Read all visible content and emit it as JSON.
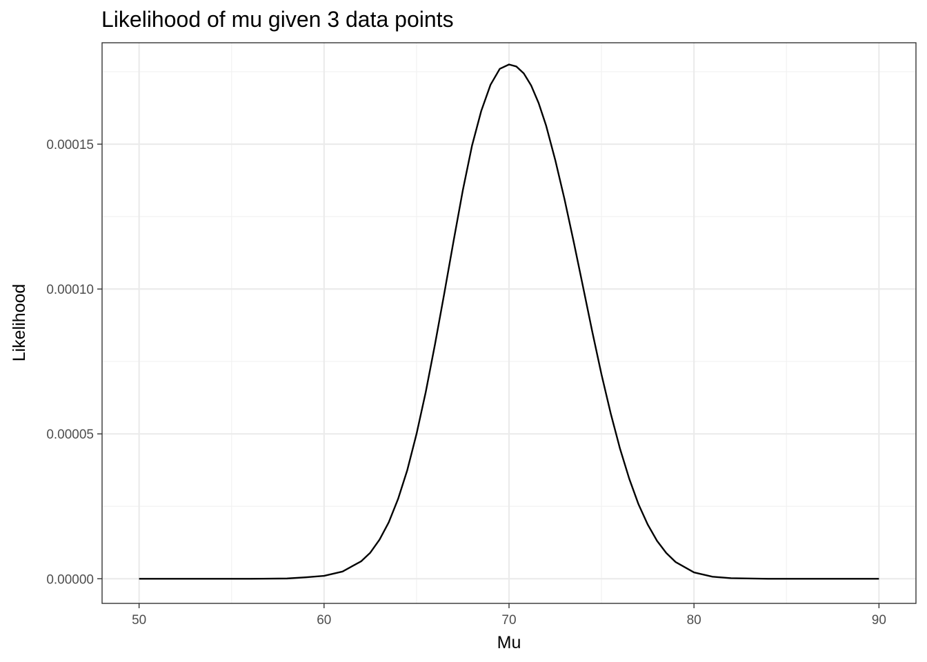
{
  "chart_data": {
    "type": "line",
    "title": "Likelihood of mu given 3 data points",
    "xlabel": "Mu",
    "ylabel": "Likelihood",
    "xlim": [
      48,
      92
    ],
    "ylim": [
      -8.5e-06,
      0.000185
    ],
    "x_ticks": [
      50,
      60,
      70,
      80,
      90
    ],
    "x_tick_labels": [
      "50",
      "60",
      "70",
      "80",
      "90"
    ],
    "y_ticks": [
      0,
      5e-05,
      0.0001,
      0.00015
    ],
    "y_tick_labels": [
      "0.00000",
      "0.00005",
      "0.00010",
      "0.00015"
    ],
    "grid": true,
    "legend": "none",
    "line_color": "#000000",
    "series": [
      {
        "x": [
          50,
          52,
          54,
          56,
          58,
          59,
          60,
          61,
          62,
          62.5,
          63,
          63.5,
          64,
          64.5,
          65,
          65.5,
          66,
          66.5,
          67,
          67.5,
          68,
          68.5,
          69,
          69.5,
          70,
          70.4,
          70.8,
          71.2,
          71.6,
          72,
          72.5,
          73,
          73.5,
          74,
          74.5,
          75,
          75.5,
          76,
          76.5,
          77,
          77.5,
          78,
          78.5,
          79,
          80,
          81,
          82,
          84,
          86,
          88,
          90
        ],
        "y": [
          0,
          0,
          0,
          0,
          1e-07,
          5e-07,
          1e-06,
          2.5e-06,
          6e-06,
          9e-06,
          1.35e-05,
          1.95e-05,
          2.75e-05,
          3.75e-05,
          5e-05,
          6.45e-05,
          8.1e-05,
          9.85e-05,
          0.0001165,
          0.000134,
          0.0001495,
          0.0001615,
          0.0001705,
          0.000176,
          0.0001775,
          0.0001768,
          0.0001744,
          0.0001702,
          0.0001642,
          0.0001565,
          0.0001445,
          0.000131,
          0.0001162,
          0.0001008,
          8.53e-05,
          7.05e-05,
          5.7e-05,
          4.49e-05,
          3.45e-05,
          2.57e-05,
          1.87e-05,
          1.31e-05,
          8.9e-06,
          5.8e-06,
          2.2e-06,
          7e-07,
          2e-07,
          0,
          0,
          0,
          0
        ]
      }
    ]
  }
}
